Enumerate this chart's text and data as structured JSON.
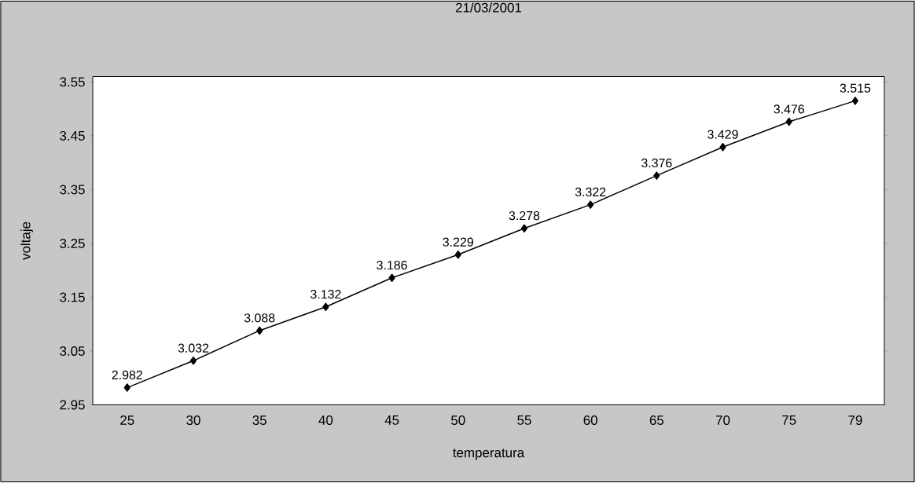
{
  "chart_data": {
    "type": "line",
    "title": "21/03/2001",
    "xlabel": "temperatura",
    "ylabel": "voltaje",
    "categories": [
      "25",
      "30",
      "35",
      "40",
      "45",
      "50",
      "55",
      "60",
      "65",
      "70",
      "75",
      "79"
    ],
    "values": [
      2.982,
      3.032,
      3.088,
      3.132,
      3.186,
      3.229,
      3.278,
      3.322,
      3.376,
      3.429,
      3.476,
      3.515
    ],
    "color": "#000000",
    "marker": "diamond",
    "data_labels": true,
    "grid": false,
    "ylim": [
      2.95,
      3.56
    ],
    "yticks": [
      2.95,
      3.05,
      3.15,
      3.25,
      3.35,
      3.45,
      3.55
    ]
  }
}
